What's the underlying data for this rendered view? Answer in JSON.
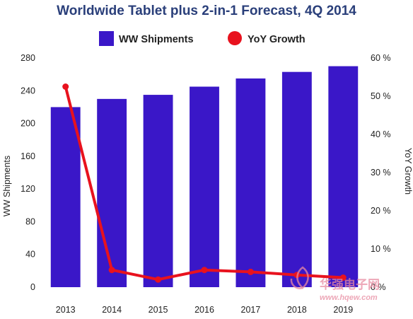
{
  "chart_data": {
    "type": "bar",
    "title": "Worldwide Tablet plus 2-in-1 Forecast, 4Q 2014",
    "categories": [
      "2013",
      "2014",
      "2015",
      "2016",
      "2017",
      "2018",
      "2019"
    ],
    "series": [
      {
        "name": "WW Shipments",
        "type": "bar",
        "axis": "left",
        "color": "#3a17c8",
        "values": [
          220,
          230,
          235,
          245,
          255,
          263,
          270
        ]
      },
      {
        "name": "YoY Growth",
        "type": "line",
        "axis": "right",
        "color": "#e8121e",
        "values": [
          52.5,
          4.5,
          2.0,
          4.5,
          4.0,
          3.2,
          2.5
        ]
      }
    ],
    "ylabel": "WW Shipments",
    "ylim": [
      0,
      280
    ],
    "yticks": [
      "0",
      "40",
      "80",
      "120",
      "160",
      "200",
      "240",
      "280"
    ],
    "y2label": "YoY Growth",
    "y2lim": [
      0,
      60
    ],
    "y2ticks": [
      "0 %",
      "10 %",
      "20 %",
      "30 %",
      "40 %",
      "50 %",
      "60 %"
    ],
    "legend": "top",
    "grid": false
  },
  "watermark": {
    "text": "华强电子网",
    "url": "www.hqew.com"
  }
}
